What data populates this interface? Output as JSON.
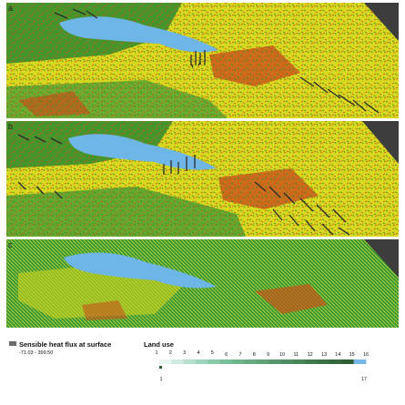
{
  "panels": [
    {
      "label": "a",
      "lake_color": "#6fb6e8",
      "wind_density": "low"
    },
    {
      "label": "b",
      "lake_color": "#6fb6e8",
      "wind_density": "high"
    },
    {
      "label": "c",
      "lake_color": "#6fb6e8",
      "wind_density": "none"
    }
  ],
  "colors": {
    "sensible_low": "#2e8b2e",
    "sensible_mid": "#d8d81e",
    "sensible_high": "#c8531a",
    "dark_area": "#3d3d3d",
    "vector": "#2b2b2b",
    "grid_yellow": "#e6e63a"
  },
  "legend": {
    "sensible": {
      "title": "Sensible heat flux at surface",
      "range": "-71.03 - 399.50",
      "swatch_color": "#6b6b6b"
    },
    "landuse": {
      "title": "Land use",
      "ticks": [
        "1",
        "2",
        "3",
        "4",
        "5",
        "6",
        "7",
        "8",
        "9",
        "10",
        "11",
        "12",
        "13",
        "14",
        "15",
        "16"
      ],
      "bottom_ticks": [
        "1",
        "17"
      ],
      "colors": [
        "#e9f6f0",
        "#cfeade",
        "#b5dfcc",
        "#9bd3bb",
        "#88c9a8",
        "#79bf98",
        "#6fb58a",
        "#67ab7f",
        "#5fa275",
        "#56986b",
        "#4d8e61",
        "#468556",
        "#3f7b4d",
        "#397244",
        "#33693b",
        "#2e6033",
        "#78b6e8"
      ]
    }
  }
}
